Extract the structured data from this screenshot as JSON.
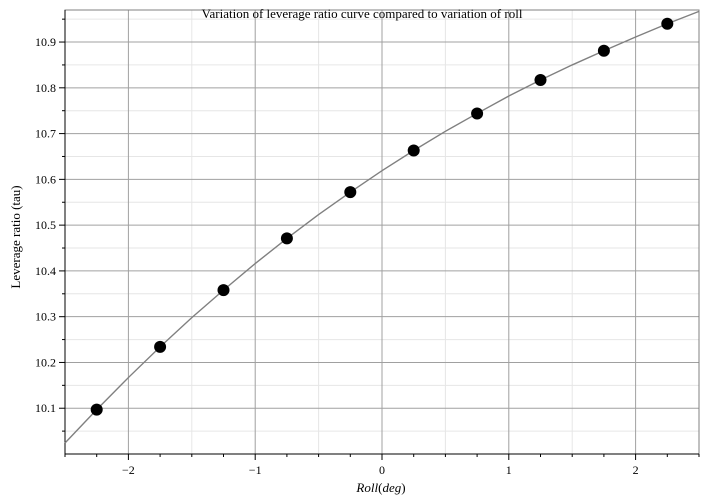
{
  "chart_data": {
    "type": "scatter",
    "title": "Variation of leverage ratio curve compared to variation of roll",
    "xlabel_italic": "Roll",
    "xlabel_paren": "deg",
    "ylabel": "Leverage ratio (tau)",
    "xlim": [
      -2.5,
      2.5
    ],
    "ylim": [
      10.0,
      10.97
    ],
    "x_ticks": [
      -2,
      -1,
      0,
      1,
      2
    ],
    "x_tick_labels": [
      "−2",
      "−1",
      "0",
      "1",
      "2"
    ],
    "y_ticks": [
      10.1,
      10.2,
      10.3,
      10.4,
      10.5,
      10.6,
      10.7,
      10.8,
      10.9
    ],
    "y_tick_labels": [
      "10.1",
      "10.2",
      "10.3",
      "10.4",
      "10.5",
      "10.6",
      "10.7",
      "10.8",
      "10.9"
    ],
    "grid": true,
    "series": [
      {
        "kind": "points",
        "x": [
          -2.25,
          -1.75,
          -1.25,
          -0.75,
          -0.25,
          0.25,
          0.75,
          1.25,
          1.75,
          2.25
        ],
        "y": [
          10.097,
          10.234,
          10.358,
          10.471,
          10.572,
          10.663,
          10.744,
          10.817,
          10.881,
          10.94
        ],
        "color": "#000000"
      },
      {
        "kind": "curve",
        "x": [
          -2.5,
          -2.25,
          -2.0,
          -1.75,
          -1.5,
          -1.25,
          -1.0,
          -0.75,
          -0.5,
          -0.25,
          0.0,
          0.25,
          0.5,
          0.75,
          1.0,
          1.25,
          1.5,
          1.75,
          2.0,
          2.25,
          2.5
        ],
        "y": [
          10.024,
          10.097,
          10.167,
          10.234,
          10.298,
          10.358,
          10.416,
          10.471,
          10.523,
          10.572,
          10.619,
          10.663,
          10.705,
          10.744,
          10.782,
          10.817,
          10.85,
          10.881,
          10.911,
          10.94,
          10.967
        ],
        "color": "#808080"
      }
    ]
  }
}
